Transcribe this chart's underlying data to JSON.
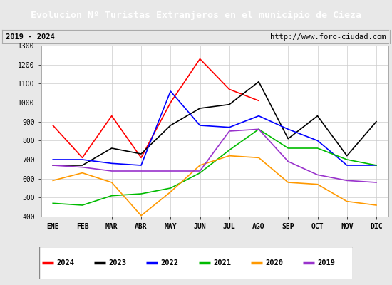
{
  "title": "Evolucion Nº Turistas Extranjeros en el municipio de Cieza",
  "subtitle_left": "2019 - 2024",
  "subtitle_right": "http://www.foro-ciudad.com",
  "title_bg_color": "#4472c4",
  "title_text_color": "#ffffff",
  "months": [
    "ENE",
    "FEB",
    "MAR",
    "ABR",
    "MAY",
    "JUN",
    "JUL",
    "AGO",
    "SEP",
    "OCT",
    "NOV",
    "DIC"
  ],
  "ylim": [
    400,
    1300
  ],
  "yticks": [
    400,
    500,
    600,
    700,
    800,
    900,
    1000,
    1100,
    1200,
    1300
  ],
  "series": {
    "2024": {
      "color": "#ff0000",
      "values": [
        880,
        710,
        930,
        710,
        1000,
        1230,
        1070,
        1010,
        null,
        null,
        null,
        null
      ]
    },
    "2023": {
      "color": "#000000",
      "values": [
        670,
        670,
        760,
        730,
        880,
        970,
        990,
        1110,
        810,
        930,
        720,
        900
      ]
    },
    "2022": {
      "color": "#0000ff",
      "values": [
        700,
        700,
        680,
        670,
        1060,
        880,
        870,
        930,
        860,
        800,
        670,
        670
      ]
    },
    "2021": {
      "color": "#00bb00",
      "values": [
        470,
        460,
        510,
        520,
        550,
        630,
        750,
        860,
        760,
        760,
        700,
        670
      ]
    },
    "2020": {
      "color": "#ff9900",
      "values": [
        590,
        630,
        580,
        405,
        530,
        670,
        720,
        710,
        580,
        570,
        480,
        460
      ]
    },
    "2019": {
      "color": "#9933cc",
      "values": [
        670,
        660,
        640,
        640,
        640,
        640,
        850,
        860,
        690,
        620,
        590,
        580
      ]
    }
  },
  "legend_order": [
    "2024",
    "2023",
    "2022",
    "2021",
    "2020",
    "2019"
  ],
  "bg_color": "#e8e8e8",
  "plot_bg_color": "#ffffff",
  "grid_color": "#cccccc"
}
